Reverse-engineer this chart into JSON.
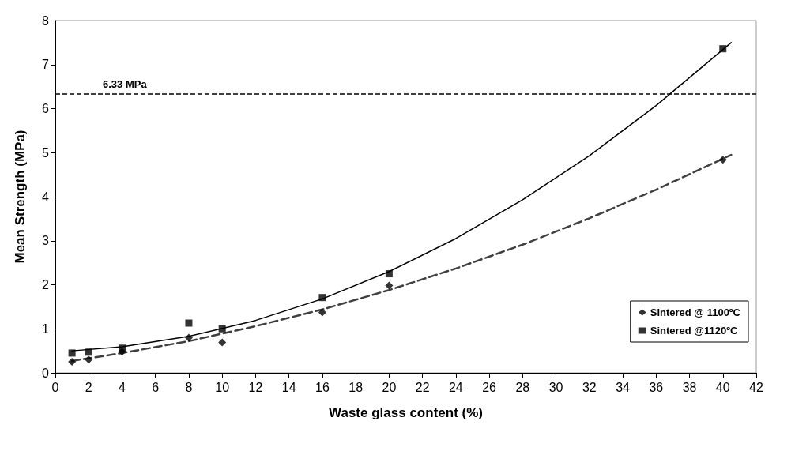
{
  "chart_data": {
    "type": "scatter",
    "xlabel": "Waste glass content (%)",
    "ylabel": "Mean Strength (MPa)",
    "x": [
      1,
      2,
      4,
      8,
      10,
      16,
      20,
      40
    ],
    "series": [
      {
        "name": "Sintered @ 1100ºC",
        "color": "#000000",
        "marker": "diamond",
        "values": [
          0.25,
          0.3,
          0.48,
          0.8,
          0.69,
          1.37,
          1.98,
          4.84
        ]
      },
      {
        "name": "Sintered @1120ºC",
        "color": "#000000",
        "marker": "square",
        "values": [
          0.45,
          0.47,
          0.56,
          1.13,
          1.0,
          1.71,
          2.25,
          7.36
        ]
      },
      {
        "type": "line",
        "color": "#404040",
        "line_style": "dashed",
        "marker": "none",
        "x": [
          1,
          4,
          8,
          12,
          16,
          20,
          24,
          28,
          32,
          36,
          40.5
        ],
        "values": [
          0.27,
          0.45,
          0.72,
          1.06,
          1.44,
          1.88,
          2.37,
          2.91,
          3.51,
          4.16,
          4.95
        ]
      },
      {
        "type": "line",
        "color": "#000000",
        "line_style": "solid",
        "marker": "none",
        "x": [
          1,
          4,
          8,
          12,
          16,
          20,
          24,
          28,
          32,
          36,
          40.5
        ],
        "values": [
          0.5,
          0.59,
          0.83,
          1.19,
          1.68,
          2.3,
          3.05,
          3.93,
          4.93,
          6.07,
          7.5
        ]
      }
    ],
    "ref_lines": [
      {
        "axis": "y",
        "value": 6.33,
        "label": "6.33 MPa",
        "color": "#000000",
        "line_style": "dashed"
      }
    ],
    "xlim": [
      0,
      42
    ],
    "xticks": [
      0,
      2,
      4,
      6,
      8,
      10,
      12,
      14,
      16,
      18,
      20,
      22,
      24,
      26,
      28,
      30,
      32,
      34,
      36,
      38,
      40,
      42
    ],
    "ylim": [
      0,
      8
    ],
    "yticks": [
      0,
      1,
      2,
      3,
      4,
      5,
      6,
      7,
      8
    ],
    "grid": false,
    "legend": "bottom right"
  }
}
